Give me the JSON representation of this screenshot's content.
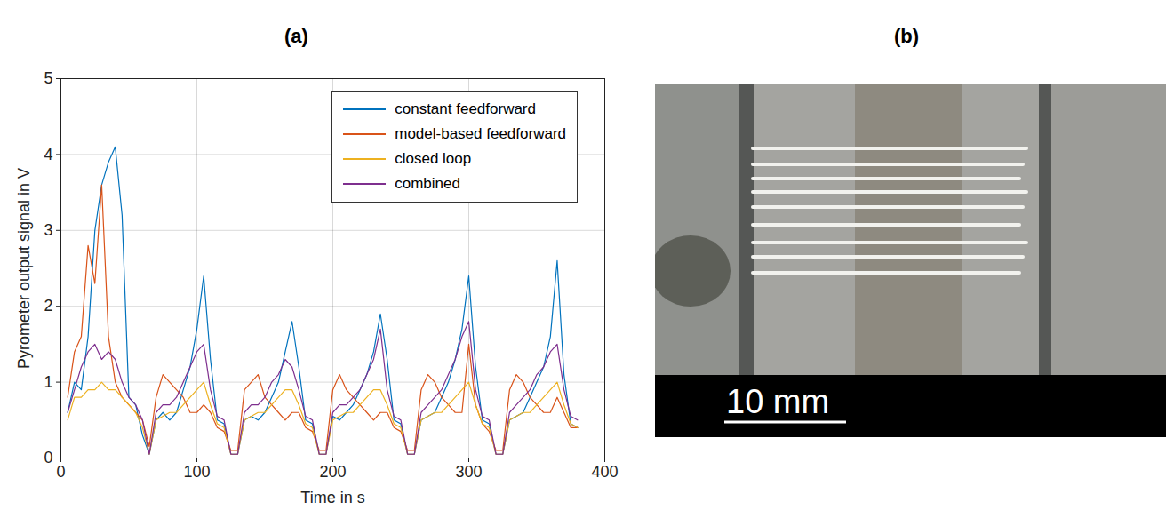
{
  "panel_labels": [
    "(a)",
    "(b)"
  ],
  "chart_data": {
    "type": "line",
    "x_label": "Time in s",
    "y_label": "Pyrometer output signal in V",
    "xlim": [
      0,
      400
    ],
    "xticks": [
      0,
      100,
      200,
      300,
      400
    ],
    "ylim": [
      0,
      5
    ],
    "yticks": [
      0,
      1,
      2,
      3,
      4,
      5
    ],
    "grid": true,
    "legend": "top-right",
    "x": [
      5,
      10,
      15,
      20,
      25,
      30,
      35,
      40,
      45,
      50,
      55,
      60,
      65,
      70,
      75,
      80,
      85,
      90,
      95,
      100,
      105,
      110,
      115,
      120,
      125,
      130,
      135,
      140,
      145,
      150,
      155,
      160,
      165,
      170,
      175,
      180,
      185,
      190,
      195,
      200,
      205,
      210,
      215,
      220,
      225,
      230,
      235,
      240,
      245,
      250,
      255,
      260,
      265,
      270,
      275,
      280,
      285,
      290,
      295,
      300,
      305,
      310,
      315,
      320,
      325,
      330,
      335,
      340,
      345,
      350,
      355,
      360,
      365,
      370,
      375,
      380
    ],
    "series": [
      {
        "name": "constant feedforward",
        "color": "#0072BD",
        "values": [
          0.6,
          1.0,
          0.9,
          1.6,
          3.0,
          3.6,
          3.9,
          4.1,
          3.2,
          0.8,
          0.7,
          0.3,
          0.05,
          0.5,
          0.6,
          0.5,
          0.6,
          0.9,
          1.2,
          1.7,
          2.4,
          1.3,
          0.5,
          0.45,
          0.05,
          0.05,
          0.5,
          0.55,
          0.5,
          0.6,
          0.8,
          1.0,
          1.4,
          1.8,
          1.2,
          0.5,
          0.45,
          0.05,
          0.05,
          0.55,
          0.5,
          0.6,
          0.7,
          0.9,
          1.1,
          1.4,
          1.9,
          1.3,
          0.5,
          0.45,
          0.05,
          0.05,
          0.5,
          0.55,
          0.6,
          0.8,
          1.0,
          1.3,
          1.7,
          2.4,
          1.2,
          0.5,
          0.45,
          0.05,
          0.05,
          0.5,
          0.55,
          0.6,
          0.8,
          1.0,
          1.2,
          1.6,
          2.6,
          1.1,
          0.45,
          0.4
        ]
      },
      {
        "name": "model-based feedforward",
        "color": "#D95319",
        "values": [
          0.8,
          1.4,
          1.6,
          2.8,
          2.3,
          3.6,
          1.6,
          1.0,
          0.8,
          0.7,
          0.6,
          0.5,
          0.15,
          0.8,
          1.1,
          1.0,
          0.9,
          0.8,
          0.6,
          0.6,
          0.7,
          0.6,
          0.4,
          0.35,
          0.1,
          0.1,
          0.9,
          1.0,
          1.1,
          0.8,
          0.7,
          0.6,
          0.5,
          0.6,
          0.6,
          0.4,
          0.35,
          0.1,
          0.1,
          0.9,
          1.1,
          0.9,
          0.8,
          0.7,
          0.6,
          0.5,
          0.6,
          0.6,
          0.4,
          0.35,
          0.1,
          0.1,
          0.9,
          1.1,
          1.0,
          0.8,
          0.7,
          0.6,
          0.6,
          1.5,
          0.7,
          0.45,
          0.35,
          0.1,
          0.1,
          0.9,
          1.1,
          1.0,
          0.8,
          0.7,
          0.6,
          0.6,
          0.8,
          0.6,
          0.4,
          0.4
        ]
      },
      {
        "name": "closed loop",
        "color": "#EDB120",
        "values": [
          0.5,
          0.8,
          0.8,
          0.9,
          0.9,
          1.0,
          0.9,
          0.9,
          0.8,
          0.7,
          0.6,
          0.4,
          0.05,
          0.5,
          0.55,
          0.6,
          0.6,
          0.7,
          0.8,
          0.9,
          1.0,
          0.7,
          0.45,
          0.4,
          0.05,
          0.05,
          0.5,
          0.55,
          0.6,
          0.6,
          0.7,
          0.8,
          0.9,
          0.9,
          0.7,
          0.45,
          0.4,
          0.05,
          0.05,
          0.5,
          0.55,
          0.6,
          0.6,
          0.7,
          0.8,
          0.9,
          0.9,
          0.7,
          0.45,
          0.4,
          0.05,
          0.05,
          0.5,
          0.55,
          0.6,
          0.6,
          0.7,
          0.8,
          0.9,
          1.0,
          0.7,
          0.45,
          0.4,
          0.05,
          0.05,
          0.5,
          0.55,
          0.6,
          0.6,
          0.7,
          0.8,
          0.9,
          1.0,
          0.7,
          0.45,
          0.4
        ]
      },
      {
        "name": "combined",
        "color": "#7E2F8E",
        "values": [
          0.6,
          0.9,
          1.2,
          1.4,
          1.5,
          1.3,
          1.4,
          1.3,
          1.0,
          0.8,
          0.7,
          0.5,
          0.05,
          0.6,
          0.7,
          0.7,
          0.8,
          1.0,
          1.2,
          1.4,
          1.5,
          0.9,
          0.55,
          0.5,
          0.05,
          0.05,
          0.6,
          0.7,
          0.7,
          0.8,
          1.0,
          1.1,
          1.3,
          1.2,
          0.9,
          0.55,
          0.5,
          0.05,
          0.05,
          0.6,
          0.7,
          0.7,
          0.8,
          0.9,
          1.1,
          1.3,
          1.7,
          0.9,
          0.55,
          0.5,
          0.05,
          0.05,
          0.6,
          0.7,
          0.8,
          0.9,
          1.1,
          1.3,
          1.6,
          1.8,
          0.9,
          0.55,
          0.5,
          0.05,
          0.05,
          0.6,
          0.7,
          0.8,
          0.9,
          1.1,
          1.2,
          1.4,
          1.5,
          0.9,
          0.55,
          0.5
        ]
      }
    ]
  },
  "photo": {
    "scale_bar_label": "10 mm"
  }
}
